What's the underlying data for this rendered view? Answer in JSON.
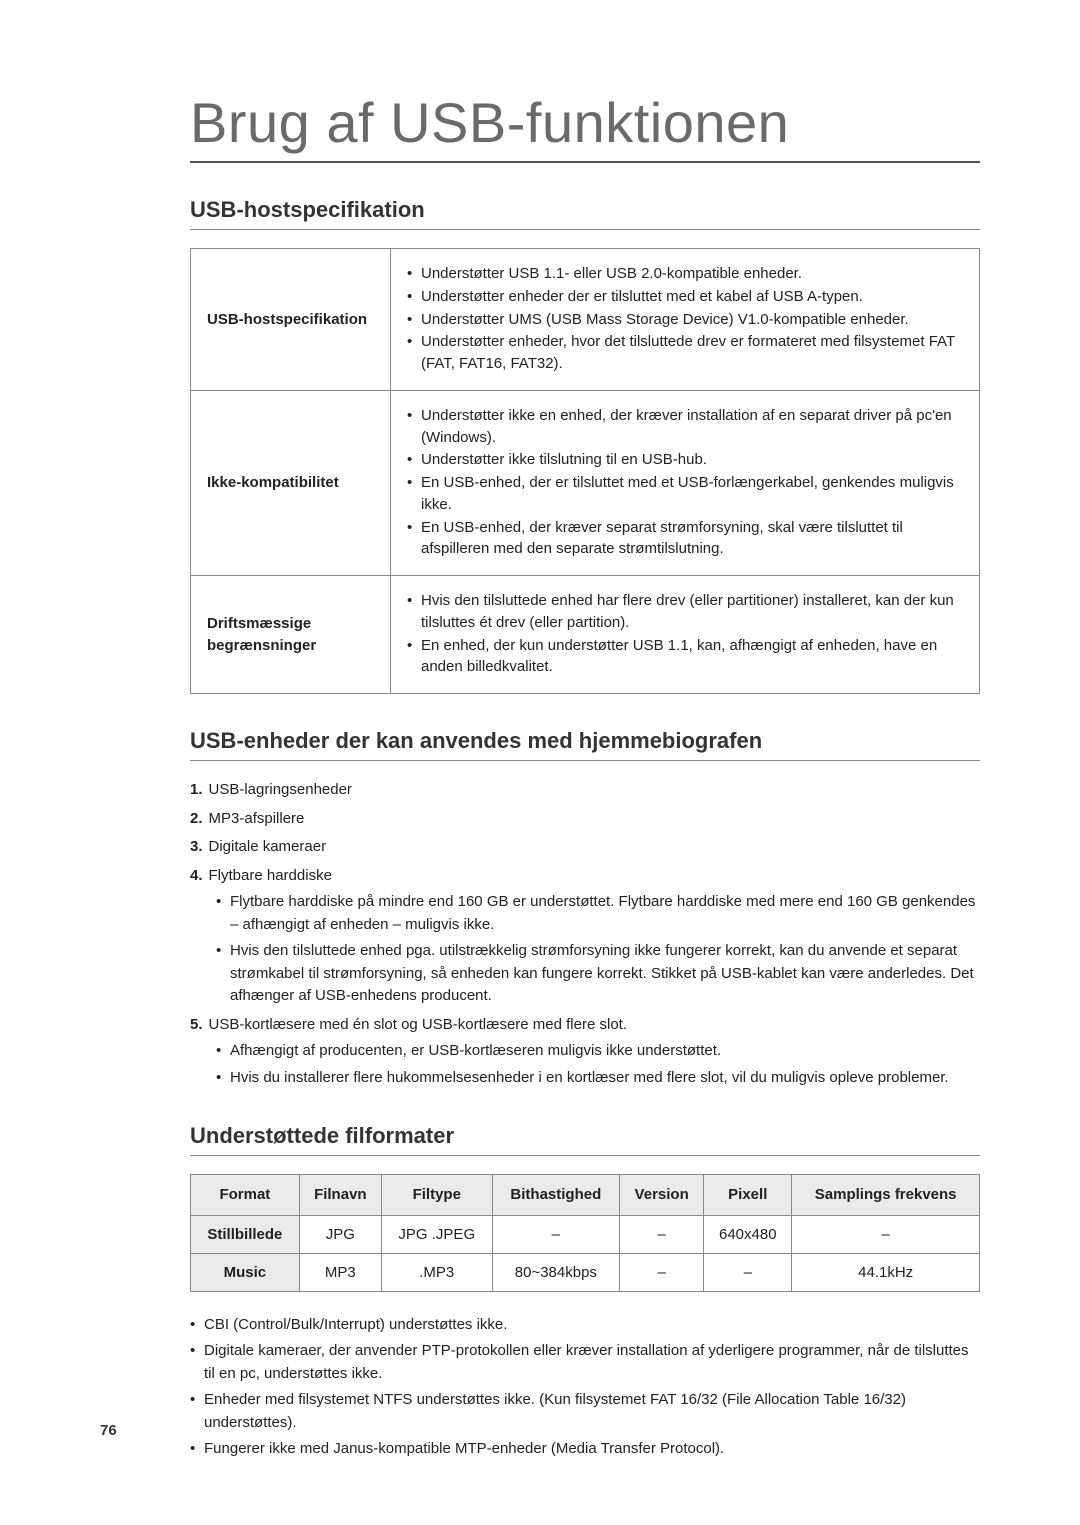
{
  "main_title": "Brug af USB-funktionen",
  "section1": {
    "title": "USB-hostspecifikation",
    "rows": [
      {
        "label": "USB-hostspecifikation",
        "items": [
          "Understøtter USB 1.1- eller USB 2.0-kompatible enheder.",
          "Understøtter enheder der er tilsluttet med et kabel af USB A-typen.",
          "Understøtter UMS (USB Mass Storage Device) V1.0-kompatible enheder.",
          "Understøtter enheder, hvor det tilsluttede drev er formateret med filsystemet FAT (FAT, FAT16, FAT32)."
        ]
      },
      {
        "label": "Ikke-kompatibilitet",
        "items": [
          "Understøtter ikke en enhed, der kræver installation af en separat driver på pc'en (Windows).",
          "Understøtter ikke tilslutning til en USB-hub.",
          "En USB-enhed, der er tilsluttet med et USB-forlængerkabel, genkendes muligvis ikke.",
          "En USB-enhed, der kræver separat strømforsyning, skal være tilsluttet til afspilleren med den separate strømtilslutning."
        ]
      },
      {
        "label": "Driftsmæssige begrænsninger",
        "items": [
          "Hvis den tilsluttede enhed har flere drev (eller partitioner) installeret, kan der kun tilsluttes ét drev (eller partition).",
          "En enhed, der kun understøtter USB 1.1, kan, afhængigt af enheden, have en anden billedkvalitet."
        ]
      }
    ]
  },
  "section2": {
    "title": "USB-enheder der kan anvendes med hjemmebiografen",
    "items": [
      {
        "num": "1.",
        "text": "USB-lagringsenheder"
      },
      {
        "num": "2.",
        "text": "MP3-afspillere"
      },
      {
        "num": "3.",
        "text": "Digitale kameraer"
      },
      {
        "num": "4.",
        "text": "Flytbare harddiske",
        "sub": [
          "Flytbare harddiske på mindre end 160 GB er understøttet. Flytbare harddiske med mere end 160 GB genkendes – afhængigt af enheden – muligvis ikke.",
          "Hvis den tilsluttede enhed pga. utilstrækkelig strømforsyning ikke fungerer korrekt, kan du anvende et separat strømkabel til strømforsyning, så enheden kan fungere korrekt. Stikket på USB-kablet kan være anderledes. Det afhænger af USB-enhedens producent."
        ]
      },
      {
        "num": "5.",
        "text": "USB-kortlæsere med én slot og USB-kortlæsere med flere slot.",
        "sub": [
          "Afhængigt af producenten, er USB-kortlæseren muligvis ikke understøttet.",
          "Hvis du installerer flere hukommelsesenheder i en kortlæser med flere slot, vil du muligvis opleve problemer."
        ]
      }
    ]
  },
  "section3": {
    "title": "Understøttede filformater",
    "columns": [
      "Format",
      "Filnavn",
      "Filtype",
      "Bithastighed",
      "Version",
      "Pixell",
      "Samplings frekvens"
    ],
    "rows": [
      [
        "Stillbillede",
        "JPG",
        "JPG .JPEG",
        "–",
        "–",
        "640x480",
        "–"
      ],
      [
        "Music",
        "MP3",
        ".MP3",
        "80~384kbps",
        "–",
        "–",
        "44.1kHz"
      ]
    ],
    "footnotes": [
      "CBI (Control/Bulk/Interrupt) understøttes ikke.",
      "Digitale kameraer, der anvender PTP-protokollen eller kræver installation af yderligere programmer, når de tilsluttes til en pc, understøttes ikke.",
      "Enheder med filsystemet NTFS understøttes ikke. (Kun filsystemet FAT 16/32 (File Allocation Table 16/32) understøttes).",
      "Fungerer ikke med Janus-kompatible MTP-enheder (Media Transfer Protocol)."
    ]
  },
  "page_number": "76",
  "colors": {
    "text": "#222222",
    "title_gray": "#6a6a6a",
    "border": "#888888",
    "shaded_bg": "#eaeaea",
    "background": "#ffffff"
  }
}
